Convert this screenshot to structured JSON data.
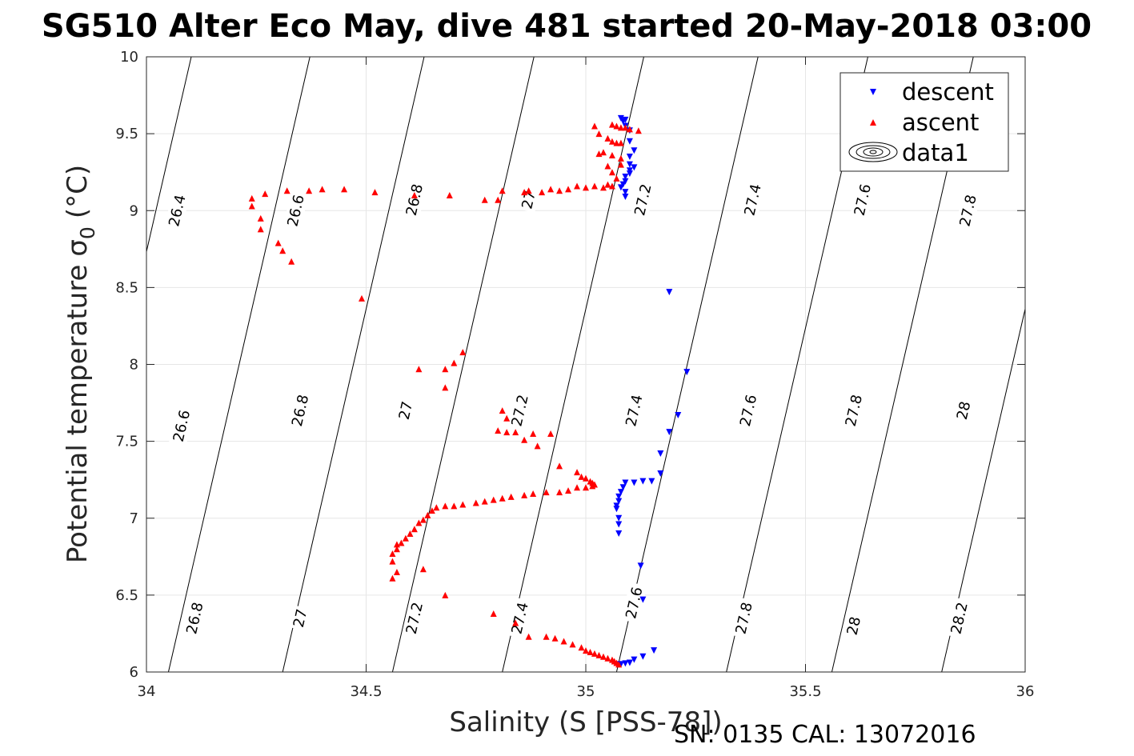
{
  "chart_data": {
    "type": "scatter",
    "title": "SG510 Alter Eco May, dive 481 started 20-May-2018 03:00",
    "xlabel": "Salinity (S [PSS-78])",
    "ylabel": "Potential temperature",
    "ylabel_sym": "σ",
    "ylabel_sub": "0",
    "ylabel_unit": "(°C)",
    "footer": "SN: 0135  CAL: 13072016",
    "xlim": [
      34,
      36
    ],
    "ylim": [
      6,
      10
    ],
    "xticks": [
      34,
      34.5,
      35,
      35.5,
      36
    ],
    "xtick_labels": [
      "34",
      "34.5",
      "35",
      "35.5",
      "36"
    ],
    "yticks": [
      6,
      6.5,
      7,
      7.5,
      8,
      8.5,
      9,
      9.5,
      10
    ],
    "ytick_labels": [
      "6",
      "6.5",
      "7",
      "7.5",
      "8",
      "8.5",
      "9",
      "9.5",
      "10"
    ],
    "grid": true,
    "legend_position": "top-right",
    "legend": [
      "descent",
      "ascent",
      "data1"
    ],
    "isopycnals": {
      "levels": [
        26.4,
        26.6,
        26.8,
        27.0,
        27.2,
        27.4,
        27.6,
        27.8,
        28.0,
        28.2
      ],
      "slope_psu_per_degC": 0.0805,
      "crossings_at_t6": [
        33.51,
        33.78,
        34.05,
        34.31,
        34.56,
        34.81,
        35.07,
        35.32,
        35.56,
        35.81
      ],
      "labels": [
        {
          "text": "26.4",
          "x": 34.07,
          "y": 9.0
        },
        {
          "text": "26.6",
          "x": 34.34,
          "y": 9.0
        },
        {
          "text": "26.8",
          "x": 34.61,
          "y": 9.07
        },
        {
          "text": "27",
          "x": 34.87,
          "y": 9.07
        },
        {
          "text": "27.2",
          "x": 35.13,
          "y": 9.07
        },
        {
          "text": "27.4",
          "x": 35.38,
          "y": 9.07
        },
        {
          "text": "27.6",
          "x": 35.63,
          "y": 9.07
        },
        {
          "text": "27.8",
          "x": 35.87,
          "y": 9.0
        },
        {
          "text": "26.6",
          "x": 34.08,
          "y": 7.6
        },
        {
          "text": "26.8",
          "x": 34.35,
          "y": 7.7
        },
        {
          "text": "27",
          "x": 34.59,
          "y": 7.7
        },
        {
          "text": "27.2",
          "x": 34.85,
          "y": 7.7
        },
        {
          "text": "27.4",
          "x": 35.11,
          "y": 7.7
        },
        {
          "text": "27.6",
          "x": 35.37,
          "y": 7.7
        },
        {
          "text": "27.8",
          "x": 35.61,
          "y": 7.7
        },
        {
          "text": "28",
          "x": 35.86,
          "y": 7.7
        },
        {
          "text": "26.8",
          "x": 34.11,
          "y": 6.35
        },
        {
          "text": "27",
          "x": 34.35,
          "y": 6.35
        },
        {
          "text": "27.2",
          "x": 34.61,
          "y": 6.35
        },
        {
          "text": "27.4",
          "x": 34.85,
          "y": 6.35
        },
        {
          "text": "27.6",
          "x": 35.11,
          "y": 6.45
        },
        {
          "text": "27.8",
          "x": 35.36,
          "y": 6.35
        },
        {
          "text": "28",
          "x": 35.61,
          "y": 6.3
        },
        {
          "text": "28.2",
          "x": 35.85,
          "y": 6.35
        }
      ]
    },
    "series": [
      {
        "name": "descent",
        "marker": "triangle-down",
        "color": "#0000ff",
        "points": [
          [
            35.08,
            9.6
          ],
          [
            35.09,
            9.59
          ],
          [
            35.085,
            9.58
          ],
          [
            35.09,
            9.55
          ],
          [
            35.1,
            9.52
          ],
          [
            35.1,
            9.45
          ],
          [
            35.11,
            9.39
          ],
          [
            35.1,
            9.35
          ],
          [
            35.1,
            9.3
          ],
          [
            35.11,
            9.28
          ],
          [
            35.1,
            9.26
          ],
          [
            35.1,
            9.24
          ],
          [
            35.09,
            9.22
          ],
          [
            35.09,
            9.19
          ],
          [
            35.085,
            9.17
          ],
          [
            35.08,
            9.15
          ],
          [
            35.09,
            9.12
          ],
          [
            35.09,
            9.09
          ],
          [
            35.19,
            8.47
          ],
          [
            35.23,
            7.95
          ],
          [
            35.21,
            7.67
          ],
          [
            35.19,
            7.56
          ],
          [
            35.17,
            7.42
          ],
          [
            35.17,
            7.29
          ],
          [
            35.15,
            7.24
          ],
          [
            35.13,
            7.24
          ],
          [
            35.11,
            7.23
          ],
          [
            35.09,
            7.23
          ],
          [
            35.085,
            7.2
          ],
          [
            35.08,
            7.17
          ],
          [
            35.075,
            7.14
          ],
          [
            35.075,
            7.11
          ],
          [
            35.07,
            7.08
          ],
          [
            35.07,
            7.06
          ],
          [
            35.075,
            7.0
          ],
          [
            35.075,
            6.96
          ],
          [
            35.075,
            6.9
          ],
          [
            35.125,
            6.69
          ],
          [
            35.13,
            6.47
          ],
          [
            35.155,
            6.14
          ],
          [
            35.13,
            6.1
          ],
          [
            35.11,
            6.08
          ],
          [
            35.1,
            6.06
          ],
          [
            35.09,
            6.055
          ],
          [
            35.08,
            6.05
          ],
          [
            35.075,
            6.05
          ]
        ]
      },
      {
        "name": "ascent",
        "marker": "triangle-up",
        "color": "#ff0000",
        "points": [
          [
            35.02,
            9.55
          ],
          [
            35.06,
            9.56
          ],
          [
            35.07,
            9.55
          ],
          [
            35.08,
            9.54
          ],
          [
            35.09,
            9.54
          ],
          [
            35.1,
            9.53
          ],
          [
            35.12,
            9.52
          ],
          [
            35.03,
            9.5
          ],
          [
            35.05,
            9.47
          ],
          [
            35.06,
            9.45
          ],
          [
            35.07,
            9.44
          ],
          [
            35.08,
            9.44
          ],
          [
            35.04,
            9.38
          ],
          [
            35.06,
            9.36
          ],
          [
            35.08,
            9.34
          ],
          [
            35.03,
            9.37
          ],
          [
            35.05,
            9.29
          ],
          [
            35.08,
            9.3
          ],
          [
            35.06,
            9.25
          ],
          [
            35.07,
            9.21
          ],
          [
            35.05,
            9.17
          ],
          [
            35.06,
            9.16
          ],
          [
            35.04,
            9.15
          ],
          [
            35.02,
            9.16
          ],
          [
            35.0,
            9.15
          ],
          [
            34.98,
            9.16
          ],
          [
            34.96,
            9.14
          ],
          [
            34.94,
            9.13
          ],
          [
            34.92,
            9.14
          ],
          [
            34.9,
            9.12
          ],
          [
            34.87,
            9.13
          ],
          [
            34.86,
            9.12
          ],
          [
            34.81,
            9.13
          ],
          [
            34.8,
            9.07
          ],
          [
            34.77,
            9.07
          ],
          [
            34.69,
            9.1
          ],
          [
            34.61,
            9.1
          ],
          [
            34.52,
            9.12
          ],
          [
            34.45,
            9.14
          ],
          [
            34.4,
            9.14
          ],
          [
            34.37,
            9.13
          ],
          [
            34.32,
            9.13
          ],
          [
            34.27,
            9.11
          ],
          [
            34.24,
            9.08
          ],
          [
            34.24,
            9.03
          ],
          [
            34.26,
            8.95
          ],
          [
            34.26,
            8.88
          ],
          [
            34.3,
            8.79
          ],
          [
            34.31,
            8.74
          ],
          [
            34.33,
            8.67
          ],
          [
            34.49,
            8.43
          ],
          [
            34.72,
            8.08
          ],
          [
            34.7,
            8.01
          ],
          [
            34.68,
            7.97
          ],
          [
            34.62,
            7.97
          ],
          [
            34.68,
            7.85
          ],
          [
            34.81,
            7.7
          ],
          [
            34.82,
            7.65
          ],
          [
            34.8,
            7.57
          ],
          [
            34.82,
            7.56
          ],
          [
            34.84,
            7.56
          ],
          [
            34.88,
            7.55
          ],
          [
            34.92,
            7.55
          ],
          [
            34.86,
            7.51
          ],
          [
            34.89,
            7.47
          ],
          [
            34.94,
            7.34
          ],
          [
            34.98,
            7.3
          ],
          [
            34.99,
            7.27
          ],
          [
            35.0,
            7.26
          ],
          [
            35.01,
            7.24
          ],
          [
            35.015,
            7.23
          ],
          [
            35.02,
            7.22
          ],
          [
            35.015,
            7.21
          ],
          [
            35.0,
            7.2
          ],
          [
            34.98,
            7.2
          ],
          [
            34.96,
            7.18
          ],
          [
            34.94,
            7.17
          ],
          [
            34.91,
            7.17
          ],
          [
            34.88,
            7.16
          ],
          [
            34.86,
            7.15
          ],
          [
            34.83,
            7.14
          ],
          [
            34.81,
            7.13
          ],
          [
            34.79,
            7.12
          ],
          [
            34.77,
            7.11
          ],
          [
            34.75,
            7.1
          ],
          [
            34.72,
            7.09
          ],
          [
            34.7,
            7.08
          ],
          [
            34.68,
            7.08
          ],
          [
            34.66,
            7.07
          ],
          [
            34.65,
            7.05
          ],
          [
            34.64,
            7.02
          ],
          [
            34.63,
            6.99
          ],
          [
            34.62,
            6.97
          ],
          [
            34.61,
            6.93
          ],
          [
            34.6,
            6.9
          ],
          [
            34.59,
            6.87
          ],
          [
            34.58,
            6.84
          ],
          [
            34.57,
            6.83
          ],
          [
            34.57,
            6.8
          ],
          [
            34.56,
            6.77
          ],
          [
            34.56,
            6.72
          ],
          [
            34.63,
            6.67
          ],
          [
            34.57,
            6.65
          ],
          [
            34.56,
            6.61
          ],
          [
            34.68,
            6.5
          ],
          [
            34.79,
            6.38
          ],
          [
            34.84,
            6.32
          ],
          [
            34.87,
            6.23
          ],
          [
            34.91,
            6.23
          ],
          [
            34.93,
            6.22
          ],
          [
            34.95,
            6.2
          ],
          [
            34.97,
            6.18
          ],
          [
            34.99,
            6.16
          ],
          [
            35.0,
            6.14
          ],
          [
            35.01,
            6.13
          ],
          [
            35.02,
            6.12
          ],
          [
            35.03,
            6.11
          ],
          [
            35.04,
            6.1
          ],
          [
            35.05,
            6.09
          ],
          [
            35.06,
            6.08
          ],
          [
            35.065,
            6.07
          ],
          [
            35.07,
            6.06
          ],
          [
            35.075,
            6.05
          ]
        ]
      }
    ]
  }
}
